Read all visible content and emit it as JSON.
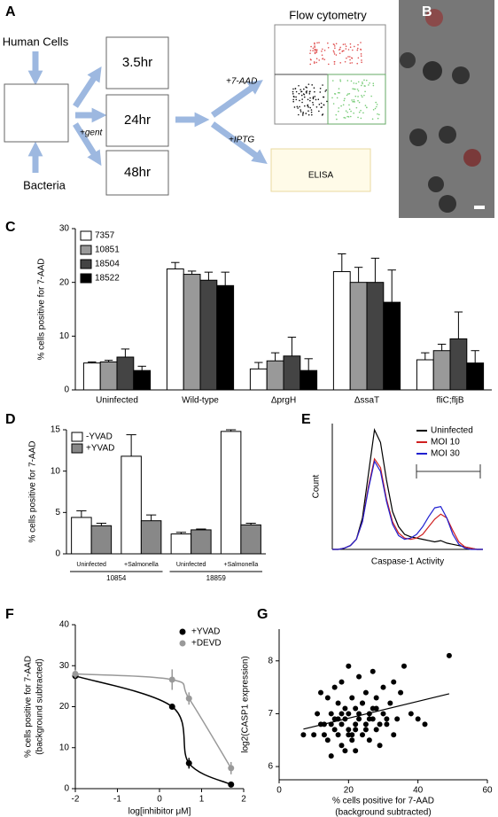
{
  "panel_labels": [
    "A",
    "B",
    "C",
    "D",
    "E",
    "F",
    "G"
  ],
  "diagram": {
    "inputs": [
      "Human Cells",
      "Bacteria"
    ],
    "timepoints": [
      "3.5hr",
      "24hr",
      "48hr"
    ],
    "steps": [
      "+gent",
      "+7-AAD",
      "+IPTG"
    ],
    "outputs": [
      "Flow cytometry",
      "ELISA"
    ]
  },
  "chart_data": [
    {
      "type": "bar",
      "ylabel": "% cells positive for 7-AAD",
      "categories": [
        "Uninfected",
        "Wild-type",
        "ΔprgH",
        "ΔssaT",
        "fliC;fljB"
      ],
      "series": [
        {
          "name": "7357",
          "color": "#ffffff",
          "values": [
            5,
            22.5,
            3.9,
            22,
            5.6
          ],
          "errors": [
            0.2,
            1.2,
            1.2,
            3.3,
            1.3
          ]
        },
        {
          "name": "10851",
          "color": "#999999",
          "values": [
            5.2,
            21.5,
            5.4,
            20,
            7.3
          ],
          "errors": [
            0.3,
            0.6,
            1.5,
            2.8,
            1.2
          ]
        },
        {
          "name": "18504",
          "color": "#444444",
          "values": [
            6.1,
            20.4,
            6.3,
            20,
            9.5
          ],
          "errors": [
            1.5,
            1.5,
            3.5,
            4.5,
            5
          ]
        },
        {
          "name": "18522",
          "color": "#000000",
          "values": [
            3.6,
            19.4,
            3.6,
            16.3,
            5
          ],
          "errors": [
            0.8,
            2.5,
            2.2,
            6,
            2.3
          ]
        }
      ],
      "ylim": [
        0,
        30
      ],
      "yticks": [
        0,
        10,
        20,
        30
      ],
      "legend": "upper-left"
    },
    {
      "type": "bar",
      "ylabel": "% cells positive for 7-AAD",
      "categories": [
        "Uninfected",
        "+Salmonella",
        "Uninfected",
        "+Salmonella"
      ],
      "groups": [
        "10854",
        "18859"
      ],
      "series": [
        {
          "name": "-YVAD",
          "color": "#ffffff",
          "values": [
            4.4,
            11.8,
            2.4,
            14.8
          ],
          "errors": [
            0.8,
            2.6,
            0.2,
            0.2
          ]
        },
        {
          "name": "+YVAD",
          "color": "#888888",
          "values": [
            3.4,
            4,
            2.9,
            3.5
          ],
          "errors": [
            0.3,
            0.7,
            0.1,
            0.2
          ]
        }
      ],
      "ylim": [
        0,
        15
      ],
      "yticks": [
        0,
        5,
        10,
        15
      ],
      "legend": "upper-left"
    },
    {
      "type": "line",
      "xlabel": "Caspase-1 Activity",
      "ylabel": "Count",
      "x": [
        0,
        4,
        8,
        12,
        16,
        20,
        24,
        28,
        32,
        36,
        40,
        44,
        48,
        52,
        56,
        60,
        64,
        68,
        72,
        76,
        80,
        84,
        88,
        92,
        96,
        100
      ],
      "series": [
        {
          "name": "Uninfected",
          "color": "#000000",
          "values": [
            0,
            0,
            1,
            3,
            8,
            25,
            60,
            95,
            85,
            55,
            30,
            18,
            12,
            10,
            9,
            8,
            7,
            6,
            7,
            5,
            4,
            3,
            2,
            1,
            0,
            0
          ]
        },
        {
          "name": "MOI 10",
          "color": "#d02020",
          "values": [
            0,
            0,
            1,
            3,
            8,
            22,
            50,
            72,
            65,
            40,
            22,
            13,
            9,
            8,
            9,
            12,
            18,
            24,
            28,
            25,
            15,
            6,
            2,
            1,
            0,
            0
          ]
        },
        {
          "name": "MOI 30",
          "color": "#2020d0",
          "values": [
            0,
            0,
            1,
            3,
            8,
            22,
            48,
            70,
            62,
            38,
            20,
            11,
            8,
            9,
            12,
            18,
            26,
            33,
            34,
            25,
            12,
            4,
            1,
            0,
            0,
            0
          ]
        }
      ],
      "xlim": [
        0,
        100
      ],
      "ylim": [
        0,
        100
      ],
      "legend": "upper-right"
    },
    {
      "type": "scatter",
      "xlabel": "log[inhibitor μM]",
      "ylabel": [
        "% cells positive for 7-AAD",
        "(background subtracted)"
      ],
      "series": [
        {
          "name": "+YVAD",
          "color": "#000000",
          "x": [
            -2,
            0.3,
            0.7,
            1.7
          ],
          "values": [
            27.5,
            20,
            6.2,
            1
          ],
          "errors": [
            0.5,
            0,
            1.3,
            0.3
          ]
        },
        {
          "name": "+DEVD",
          "color": "#999999",
          "x": [
            -2,
            0.3,
            0.7,
            1.7
          ],
          "values": [
            28,
            26.6,
            22,
            5
          ],
          "errors": [
            1,
            2.5,
            1.5,
            1.5
          ]
        }
      ],
      "xlim": [
        -2,
        2
      ],
      "xticks": [
        -2,
        -1,
        0,
        1,
        2
      ],
      "ylim": [
        0,
        40
      ],
      "yticks": [
        0,
        10,
        20,
        30,
        40
      ],
      "legend": "upper-right",
      "fit_curve": true
    },
    {
      "type": "scatter",
      "xlabel": [
        "% cells positive for 7-AAD",
        "(background subtracted)"
      ],
      "ylabel": "log2(CASP1 expression)",
      "color": "#000000",
      "x": [
        10,
        12,
        13,
        14,
        15,
        15,
        16,
        16,
        17,
        17,
        18,
        18,
        18,
        19,
        19,
        20,
        20,
        20,
        21,
        21,
        22,
        22,
        22,
        23,
        23,
        24,
        24,
        25,
        25,
        26,
        26,
        27,
        27,
        28,
        28,
        29,
        30,
        30,
        31,
        32,
        33,
        34,
        35,
        36,
        38,
        40,
        42,
        49,
        7,
        11,
        13,
        14,
        16,
        17,
        19,
        21,
        23,
        25,
        27,
        29,
        31,
        33,
        15,
        18,
        20,
        24,
        26,
        12,
        22,
        28
      ],
      "values": [
        6.6,
        7.4,
        6.8,
        6.5,
        7.0,
        6.2,
        6.9,
        7.5,
        6.6,
        7.2,
        6.4,
        6.8,
        7.6,
        6.9,
        6.3,
        7.0,
        6.7,
        7.9,
        6.5,
        7.3,
        6.8,
        7.1,
        6.3,
        6.9,
        7.7,
        6.6,
        7.2,
        6.8,
        7.4,
        6.5,
        7.0,
        6.9,
        7.8,
        6.7,
        7.3,
        6.4,
        7.0,
        7.5,
        6.8,
        7.2,
        6.6,
        6.9,
        7.4,
        7.9,
        7.0,
        6.9,
        6.8,
        8.1,
        6.6,
        7.0,
        6.6,
        7.3,
        6.7,
        6.9,
        7.1,
        6.6,
        7.0,
        6.7,
        7.1,
        6.8,
        6.9,
        7.6,
        6.8,
        7.0,
        6.6,
        7.2,
        6.9,
        6.8,
        6.7,
        7.1
      ],
      "xlim": [
        0,
        60
      ],
      "xticks": [
        0,
        20,
        40,
        60
      ],
      "ylim": [
        5.75,
        8.6
      ],
      "yticks": [
        6,
        7,
        8
      ],
      "trendline": true
    }
  ]
}
